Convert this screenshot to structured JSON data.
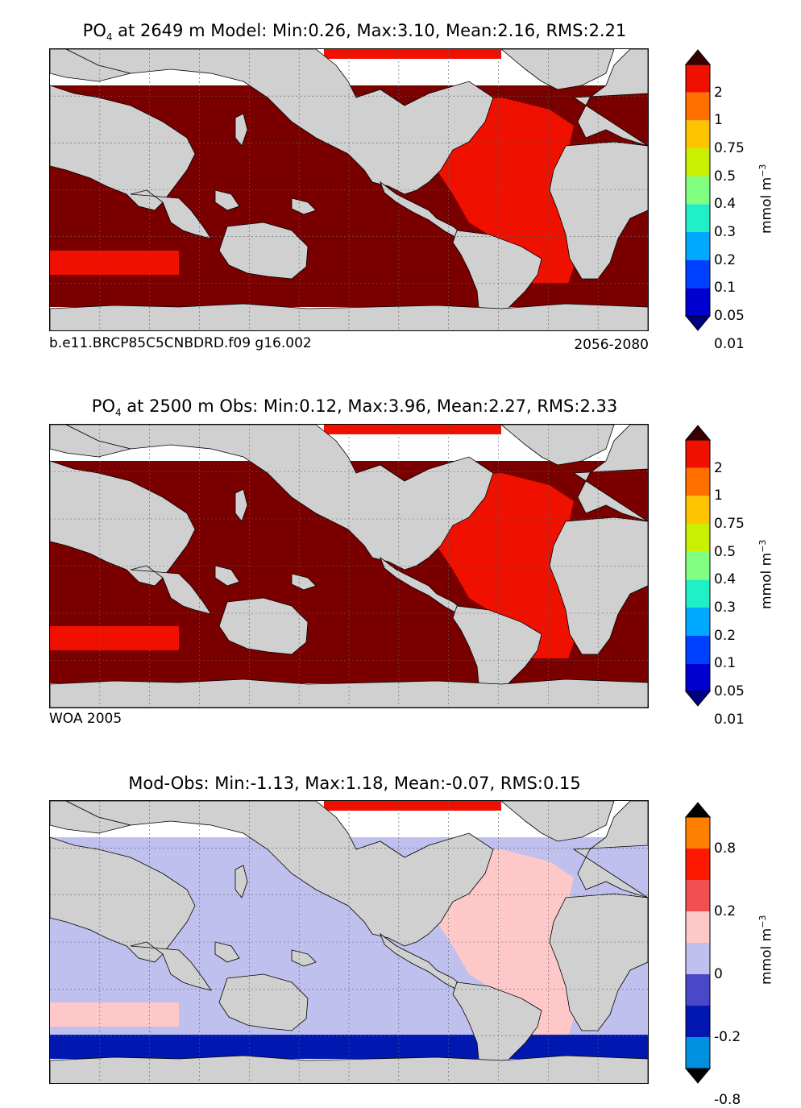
{
  "panels": [
    {
      "title_prefix": "PO",
      "title_sub": "4",
      "title_rest": " at 2649 m Model: Min:0.26, Max:3.10, Mean:2.16, RMS:2.21",
      "caption_left": "b.e11.BRCP85C5CNBDRD.f09 g16.002",
      "caption_right": "2056-2080",
      "ocean_color": "#7a0000",
      "atlantic_color": "#f01000",
      "southern_band_color": "#7a0000"
    },
    {
      "title_prefix": "PO",
      "title_sub": "4",
      "title_rest": " at 2500 m Obs: Min:0.12, Max:3.96, Mean:2.27, RMS:2.33",
      "caption_left": "WOA 2005",
      "caption_right": "",
      "ocean_color": "#7a0000",
      "atlantic_color": "#f01000",
      "southern_band_color": "#7a0000"
    },
    {
      "title_prefix": "Mod-Obs: Min:-1.13, Max:1.18, Mean:-0.07, RMS:0.15",
      "title_sub": "",
      "title_rest": "",
      "caption_left": "",
      "caption_right": "",
      "ocean_color": "#c0c0ee",
      "atlantic_color": "#ffc8c8",
      "southern_band_color": "#0018b0"
    }
  ],
  "colorbar_absolute": {
    "labels": [
      "2",
      "1",
      "0.75",
      "0.5",
      "0.4",
      "0.3",
      "0.2",
      "0.1",
      "0.05",
      "0.01"
    ],
    "colors": [
      "#000080",
      "#0000d0",
      "#0040ff",
      "#00a8ff",
      "#20f0c8",
      "#80ff80",
      "#c8f000",
      "#ffc400",
      "#ff7000",
      "#f01000",
      "#7a0000"
    ],
    "units": "mmol m",
    "units_sup": "−3"
  },
  "colorbar_diff": {
    "labels": [
      "0.8",
      "0.2",
      "0",
      "-0.2",
      "-0.8"
    ],
    "colors": [
      "#00ffff",
      "#0090e0",
      "#0018b0",
      "#4848c8",
      "#c0c0ee",
      "#ffc8c8",
      "#f05050",
      "#ff1800",
      "#ff8000",
      "#ffff00"
    ],
    "units": "mmol m",
    "units_sup": "−3"
  },
  "colors": {
    "land": "#d0d0d0",
    "no_data": "#ffffff",
    "grid": "#606060"
  }
}
